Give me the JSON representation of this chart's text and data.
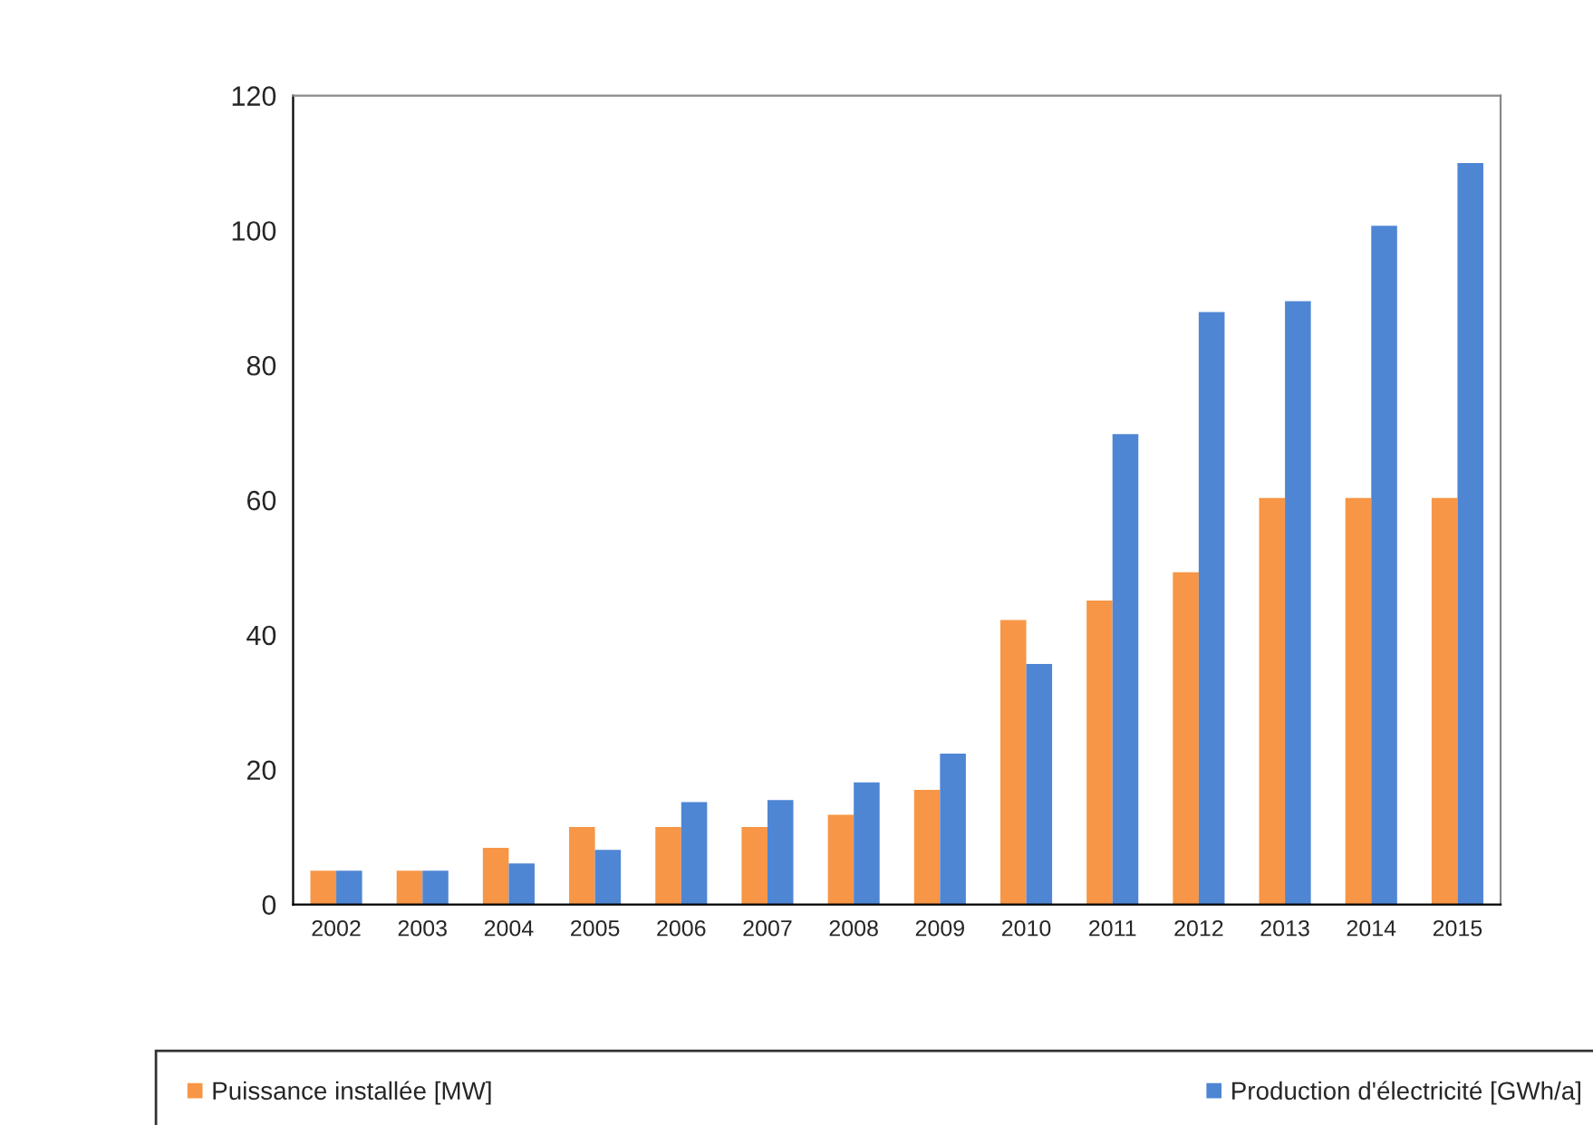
{
  "chart_data": {
    "type": "bar",
    "categories": [
      "2002",
      "2003",
      "2004",
      "2005",
      "2006",
      "2007",
      "2008",
      "2009",
      "2010",
      "2011",
      "2012",
      "2013",
      "2014",
      "2015"
    ],
    "series": [
      {
        "name": "Puissance installée [MW]",
        "color": "#f79646",
        "values": [
          5.0,
          5.0,
          8.4,
          11.5,
          11.5,
          11.5,
          13.3,
          17.0,
          42.2,
          45.1,
          49.3,
          60.3,
          60.3,
          60.3
        ]
      },
      {
        "name": "Production d'électricité [GWh/a]",
        "color": "#4f86d4",
        "values": [
          5.0,
          5.0,
          6.1,
          8.1,
          15.2,
          15.5,
          18.1,
          22.4,
          35.7,
          69.8,
          87.9,
          89.5,
          100.7,
          110.0
        ]
      }
    ],
    "ylim": [
      0,
      120
    ],
    "yticks": [
      0,
      20,
      40,
      60,
      80,
      100,
      120
    ],
    "grid": false,
    "legend": "bottom"
  }
}
